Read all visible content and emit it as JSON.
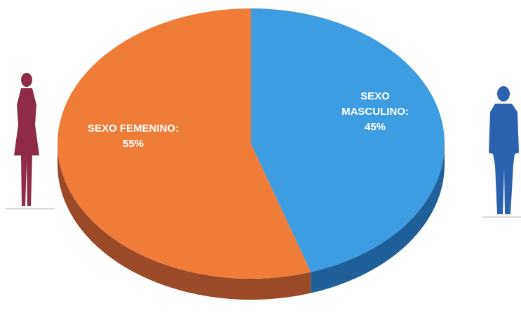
{
  "chart_data": {
    "type": "pie",
    "categories": [
      "SEXO FEMENINO:",
      "SEXO MASCULINO:"
    ],
    "values": [
      55,
      45
    ],
    "value_labels": [
      "55%",
      "45%"
    ],
    "colors": [
      "#f07c3a",
      "#3e9ce0"
    ],
    "side_colors": [
      "#9b4a28",
      "#20609a"
    ]
  }
}
